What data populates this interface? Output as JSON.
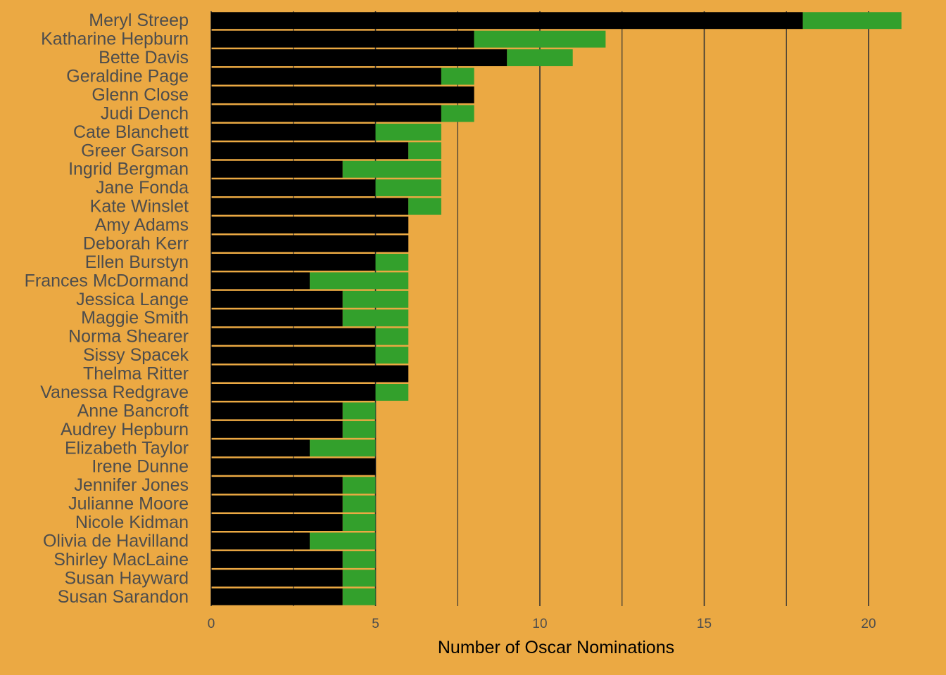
{
  "chart_data": {
    "type": "bar",
    "orientation": "horizontal",
    "stacked": true,
    "title": "",
    "xlabel": "Number of Oscar Nominations",
    "ylabel": "",
    "xlim": [
      0,
      22
    ],
    "x_ticks": [
      0,
      5,
      10,
      15,
      20
    ],
    "grid": "vertical major and minor lines",
    "legend": "none",
    "categories": [
      "Meryl Streep",
      "Katharine Hepburn",
      "Bette Davis",
      "Geraldine Page",
      "Glenn Close",
      "Judi Dench",
      "Cate Blanchett",
      "Greer Garson",
      "Ingrid Bergman",
      "Jane Fonda",
      "Kate Winslet",
      "Amy Adams",
      "Deborah Kerr",
      "Ellen Burstyn",
      "Frances McDormand",
      "Jessica Lange",
      "Maggie Smith",
      "Norma Shearer",
      "Sissy Spacek",
      "Thelma Ritter",
      "Vanessa Redgrave",
      "Anne Bancroft",
      "Audrey Hepburn",
      "Elizabeth Taylor",
      "Irene Dunne",
      "Jennifer Jones",
      "Julianne Moore",
      "Nicole Kidman",
      "Olivia de Havilland",
      "Shirley MacLaine",
      "Susan Hayward",
      "Susan Sarandon"
    ],
    "series": [
      {
        "color": "#000000",
        "values": [
          18,
          8,
          9,
          7,
          8,
          7,
          5,
          6,
          4,
          5,
          6,
          6,
          6,
          5,
          3,
          4,
          4,
          5,
          5,
          6,
          5,
          4,
          4,
          3,
          5,
          4,
          4,
          4,
          3,
          4,
          4,
          4
        ]
      },
      {
        "color": "#33A02C",
        "values": [
          3,
          4,
          2,
          1,
          0,
          1,
          2,
          1,
          3,
          2,
          1,
          0,
          0,
          1,
          3,
          2,
          2,
          1,
          1,
          0,
          1,
          1,
          1,
          2,
          0,
          1,
          1,
          1,
          2,
          1,
          1,
          1
        ]
      }
    ]
  },
  "colors": {
    "background": "#EBA943",
    "grid": "#333333",
    "bar_separator": "#EBA943"
  }
}
